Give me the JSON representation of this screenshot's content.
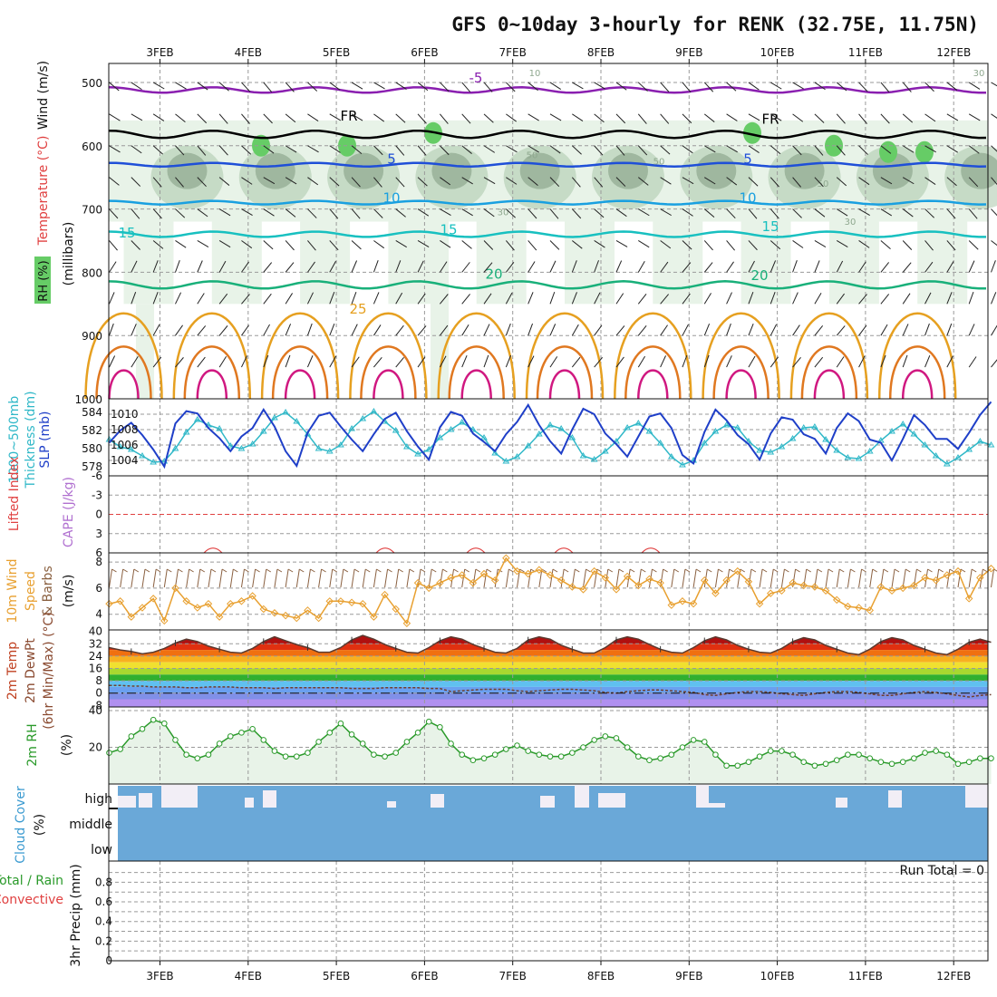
{
  "title": "GFS 0~10day 3-hourly for RENK (32.75E, 11.75N)",
  "dates": [
    "3FEB",
    "4FEB",
    "5FEB",
    "6FEB",
    "7FEB",
    "8FEB",
    "9FEB",
    "10FEB",
    "11FEB",
    "12FEB"
  ],
  "colors": {
    "rh_fill": "#e8f3e8",
    "rh50": "#a9c7a9",
    "rh70": "#8fa88f",
    "rh90": "#66cc66",
    "temp5": "#1f4fd8",
    "temp10": "#1aa0e0",
    "temp15": "#18c0c0",
    "temp20": "#19b07a",
    "temp25": "#e6a020",
    "temp30": "#e07820",
    "temp35": "#d01880",
    "freezing": "#000000",
    "tmp_m5": "#8a1fb0",
    "slp": "#1f3fc8",
    "thickness": "#30b8c8",
    "li": "#e04040",
    "wind10": "#e8a030",
    "barb10": "#8a6040",
    "rh2m": "#2a9a2a",
    "cloud": "#6aa8d8",
    "cloud_gap": "#f2eef6"
  },
  "chart_data": [
    {
      "type": "heatmap",
      "name": "upper",
      "ylabel_parts": [
        "RH (%)",
        "Temperature (°C)",
        "Wind (m/s)"
      ],
      "yunit": "(millibars)",
      "yticks": [
        "500",
        "600",
        "700",
        "800",
        "900",
        "1000"
      ],
      "contour_labels": [
        "-5",
        "FR",
        "FR",
        "5",
        "5",
        "10",
        "10",
        "15",
        "15",
        "15",
        "20",
        "20",
        "25",
        "10",
        "30",
        "30",
        "50",
        "50",
        "50",
        "30"
      ]
    },
    {
      "type": "line",
      "name": "pressure",
      "ylabel_parts": [
        "1000~500mb",
        "Thickness (dm)",
        "SLP (mb)"
      ],
      "left_ticks": [
        "584",
        "582",
        "580",
        "578"
      ],
      "right_ticks": [
        "1010",
        "1008",
        "1006",
        "1004"
      ],
      "series": [
        {
          "name": "SLP (mb)",
          "values": [
            1006.3,
            1007.9,
            1008.9,
            1007.3,
            1005.4,
            1003.2,
            1008.8,
            1010.4,
            1010.1,
            1008.2,
            1006.9,
            1005.2,
            1007.1,
            1008.2,
            1010.6,
            1008.4,
            1005.2,
            1003.3,
            1007.6,
            1009.8,
            1010.2,
            1008.4,
            1006.7,
            1005.2,
            1007.4,
            1009.4,
            1010.2,
            1007.8,
            1005.8,
            1004.1,
            1008.3,
            1010.3,
            1009.8,
            1007.5,
            1006.4,
            1005.2,
            1007.4,
            1009.0,
            1011.2,
            1008.6,
            1006.5,
            1004.9,
            1008.0,
            1010.7,
            1010.0,
            1007.5,
            1006.1,
            1004.5,
            1007.1,
            1009.7,
            1010.1,
            1008.2,
            1004.7,
            1003.6,
            1007.7,
            1010.6,
            1009.2,
            1007.3,
            1006.1,
            1004.1,
            1007.5,
            1009.6,
            1009.3,
            1007.4,
            1006.8,
            1004.9,
            1008.2,
            1010.1,
            1009.1,
            1006.7,
            1006.3,
            1004.0,
            1006.8,
            1009.9,
            1008.6,
            1006.8,
            1006.8,
            1005.5,
            1007.6,
            1009.9,
            1011.6
          ]
        },
        {
          "name": "1000~500mb Thickness (dm)",
          "values": [
            581.0,
            580.2,
            579.9,
            579.2,
            578.5,
            578.6,
            580.0,
            581.8,
            583.2,
            582.6,
            582.2,
            580.3,
            580.0,
            580.5,
            581.9,
            583.4,
            584.0,
            583.0,
            581.6,
            580.0,
            579.7,
            580.4,
            582.2,
            583.3,
            584.1,
            583.0,
            582.0,
            580.2,
            579.4,
            579.9,
            581.2,
            582.1,
            582.9,
            582.1,
            581.2,
            579.5,
            578.6,
            579.1,
            580.3,
            581.6,
            582.6,
            582.2,
            581.2,
            579.2,
            578.8,
            579.7,
            580.8,
            582.3,
            582.8,
            581.9,
            580.6,
            579.1,
            578.2,
            578.7,
            580.6,
            581.9,
            582.6,
            582.3,
            580.8,
            579.8,
            579.6,
            580.2,
            581.1,
            582.3,
            582.4,
            581.0,
            579.8,
            579.0,
            578.9,
            579.7,
            580.9,
            581.9,
            582.7,
            581.6,
            580.4,
            579.2,
            578.3,
            579.0,
            579.9,
            580.8,
            580.4
          ]
        }
      ]
    },
    {
      "type": "line",
      "name": "stability",
      "ylabel_parts": [
        "Lifted Index",
        "CAPE (J/kg)"
      ],
      "yticks": [
        "-6",
        "-3",
        "0",
        "3",
        "6"
      ],
      "series": [
        {
          "name": "Lifted Index",
          "values": []
        },
        {
          "name": "CAPE (J/kg)",
          "values": []
        }
      ]
    },
    {
      "type": "line",
      "name": "wind10m",
      "ylabel_parts": [
        "10m Wind",
        "Speed",
        "& Barbs",
        "(m/s)"
      ],
      "yticks": [
        "8",
        "6",
        "4"
      ],
      "series": [
        {
          "name": "10m Wind Speed",
          "values": [
            4.8,
            5.0,
            3.8,
            4.5,
            5.2,
            3.5,
            6.0,
            5.0,
            4.5,
            4.8,
            3.8,
            4.8,
            5.0,
            5.4,
            4.4,
            4.1,
            3.9,
            3.7,
            4.3,
            3.7,
            5.0,
            5.0,
            4.9,
            4.8,
            3.8,
            5.5,
            4.4,
            3.3,
            6.4,
            6.0,
            6.4,
            6.8,
            7.0,
            6.4,
            7.1,
            6.6,
            8.3,
            7.3,
            7.1,
            7.4,
            7.0,
            6.6,
            6.1,
            5.9,
            7.3,
            6.8,
            5.9,
            6.9,
            6.2,
            6.7,
            6.4,
            4.7,
            5.0,
            4.8,
            6.6,
            5.6,
            6.6,
            7.3,
            6.5,
            4.8,
            5.6,
            5.8,
            6.4,
            6.2,
            6.1,
            5.8,
            5.1,
            4.6,
            4.5,
            4.3,
            6.1,
            5.8,
            6.0,
            6.2,
            6.8,
            6.6,
            7.0,
            7.3,
            5.2,
            6.8,
            7.5
          ]
        }
      ]
    },
    {
      "type": "area",
      "name": "temperature",
      "ylabel_parts": [
        "2m Temp",
        "2m DewPt",
        "(6hr Min/Max) (°C)"
      ],
      "yticks": [
        "40",
        "32",
        "24",
        "16",
        "8",
        "0",
        "-8"
      ],
      "series": [
        {
          "name": "2m Temp",
          "values": [
            29.5,
            28.0,
            27.0,
            25.5,
            26.5,
            29.0,
            32.5,
            35.0,
            33.5,
            30.5,
            28.5,
            26.5,
            26.0,
            29.0,
            33.5,
            36.5,
            34.0,
            31.5,
            29.5,
            26.5,
            26.5,
            29.5,
            34.5,
            37.5,
            35.0,
            31.5,
            29.0,
            26.5,
            26.0,
            29.5,
            34.0,
            36.5,
            35.0,
            31.5,
            29.0,
            26.5,
            26.0,
            29.0,
            34.5,
            36.5,
            35.0,
            31.0,
            28.5,
            26.0,
            26.0,
            29.5,
            34.5,
            36.5,
            35.0,
            31.5,
            28.5,
            26.5,
            26.0,
            29.5,
            34.0,
            36.5,
            34.5,
            31.0,
            28.5,
            26.5,
            26.0,
            29.0,
            33.5,
            36.0,
            34.5,
            31.0,
            28.5,
            26.0,
            25.0,
            28.5,
            33.5,
            36.0,
            34.5,
            31.0,
            28.5,
            26.0,
            25.0,
            28.5,
            33.0,
            35.0,
            33.0
          ]
        },
        {
          "name": "2m DewPt",
          "values": [
            5.0,
            5.0,
            4.5,
            4.5,
            4.0,
            4.0,
            4.0,
            3.5,
            3.5,
            4.0,
            4.0,
            4.0,
            3.5,
            3.5,
            3.5,
            3.0,
            3.5,
            3.5,
            3.5,
            3.5,
            3.5,
            3.5,
            3.0,
            3.0,
            3.0,
            3.5,
            3.5,
            3.5,
            3.5,
            3.0,
            3.0,
            1.0,
            1.5,
            2.0,
            2.5,
            2.5,
            2.5,
            1.5,
            1.0,
            1.5,
            2.0,
            2.5,
            2.5,
            2.0,
            1.5,
            0.5,
            0.0,
            1.0,
            1.5,
            2.0,
            2.0,
            1.5,
            1.0,
            0.5,
            -1.0,
            -1.5,
            -0.5,
            0.5,
            1.0,
            1.0,
            0.5,
            -0.5,
            -1.0,
            -1.5,
            -0.5,
            0.5,
            1.0,
            1.0,
            0.5,
            -0.5,
            -1.5,
            -1.5,
            -0.5,
            0.5,
            1.0,
            0.5,
            -0.5,
            -1.5,
            -2.5,
            -1.5,
            -1.0
          ]
        }
      ]
    },
    {
      "type": "area",
      "name": "rh2m",
      "ylabel_parts": [
        "2m RH",
        "(%)"
      ],
      "yticks": [
        "40",
        "20"
      ],
      "series": [
        {
          "name": "2m RH",
          "values": [
            17,
            19,
            26,
            30,
            35,
            33,
            24,
            16,
            14,
            16,
            22,
            26,
            28,
            30,
            24,
            18,
            15,
            15,
            17,
            23,
            28,
            33,
            27,
            22,
            16,
            15,
            17,
            23,
            28,
            34,
            31,
            22,
            16,
            13,
            14,
            16,
            19,
            21,
            18,
            16,
            15,
            15,
            17,
            20,
            24,
            26,
            25,
            20,
            15,
            13,
            14,
            16,
            20,
            24,
            23,
            16,
            10,
            10,
            12,
            15,
            18,
            18,
            16,
            12,
            10,
            11,
            13,
            16,
            16,
            14,
            12,
            11,
            12,
            14,
            17,
            18,
            16,
            11,
            12,
            14,
            14
          ]
        }
      ]
    },
    {
      "type": "bar",
      "name": "cloud",
      "ylabel_parts": [
        "Cloud Cover",
        "(%)"
      ],
      "yticks": [
        "high",
        "middle",
        "low"
      ]
    },
    {
      "type": "bar",
      "name": "precip",
      "ylabel_parts": [
        "Total / Rain",
        "Convective",
        "3hr Precip (mm)"
      ],
      "yticks": [
        "0.8",
        "0.6",
        "0.4",
        "0.2",
        "0"
      ],
      "run_total_label": "Run Total = 0",
      "series": [
        {
          "name": "Total / Rain",
          "values": []
        },
        {
          "name": "Convective",
          "values": []
        }
      ]
    }
  ]
}
